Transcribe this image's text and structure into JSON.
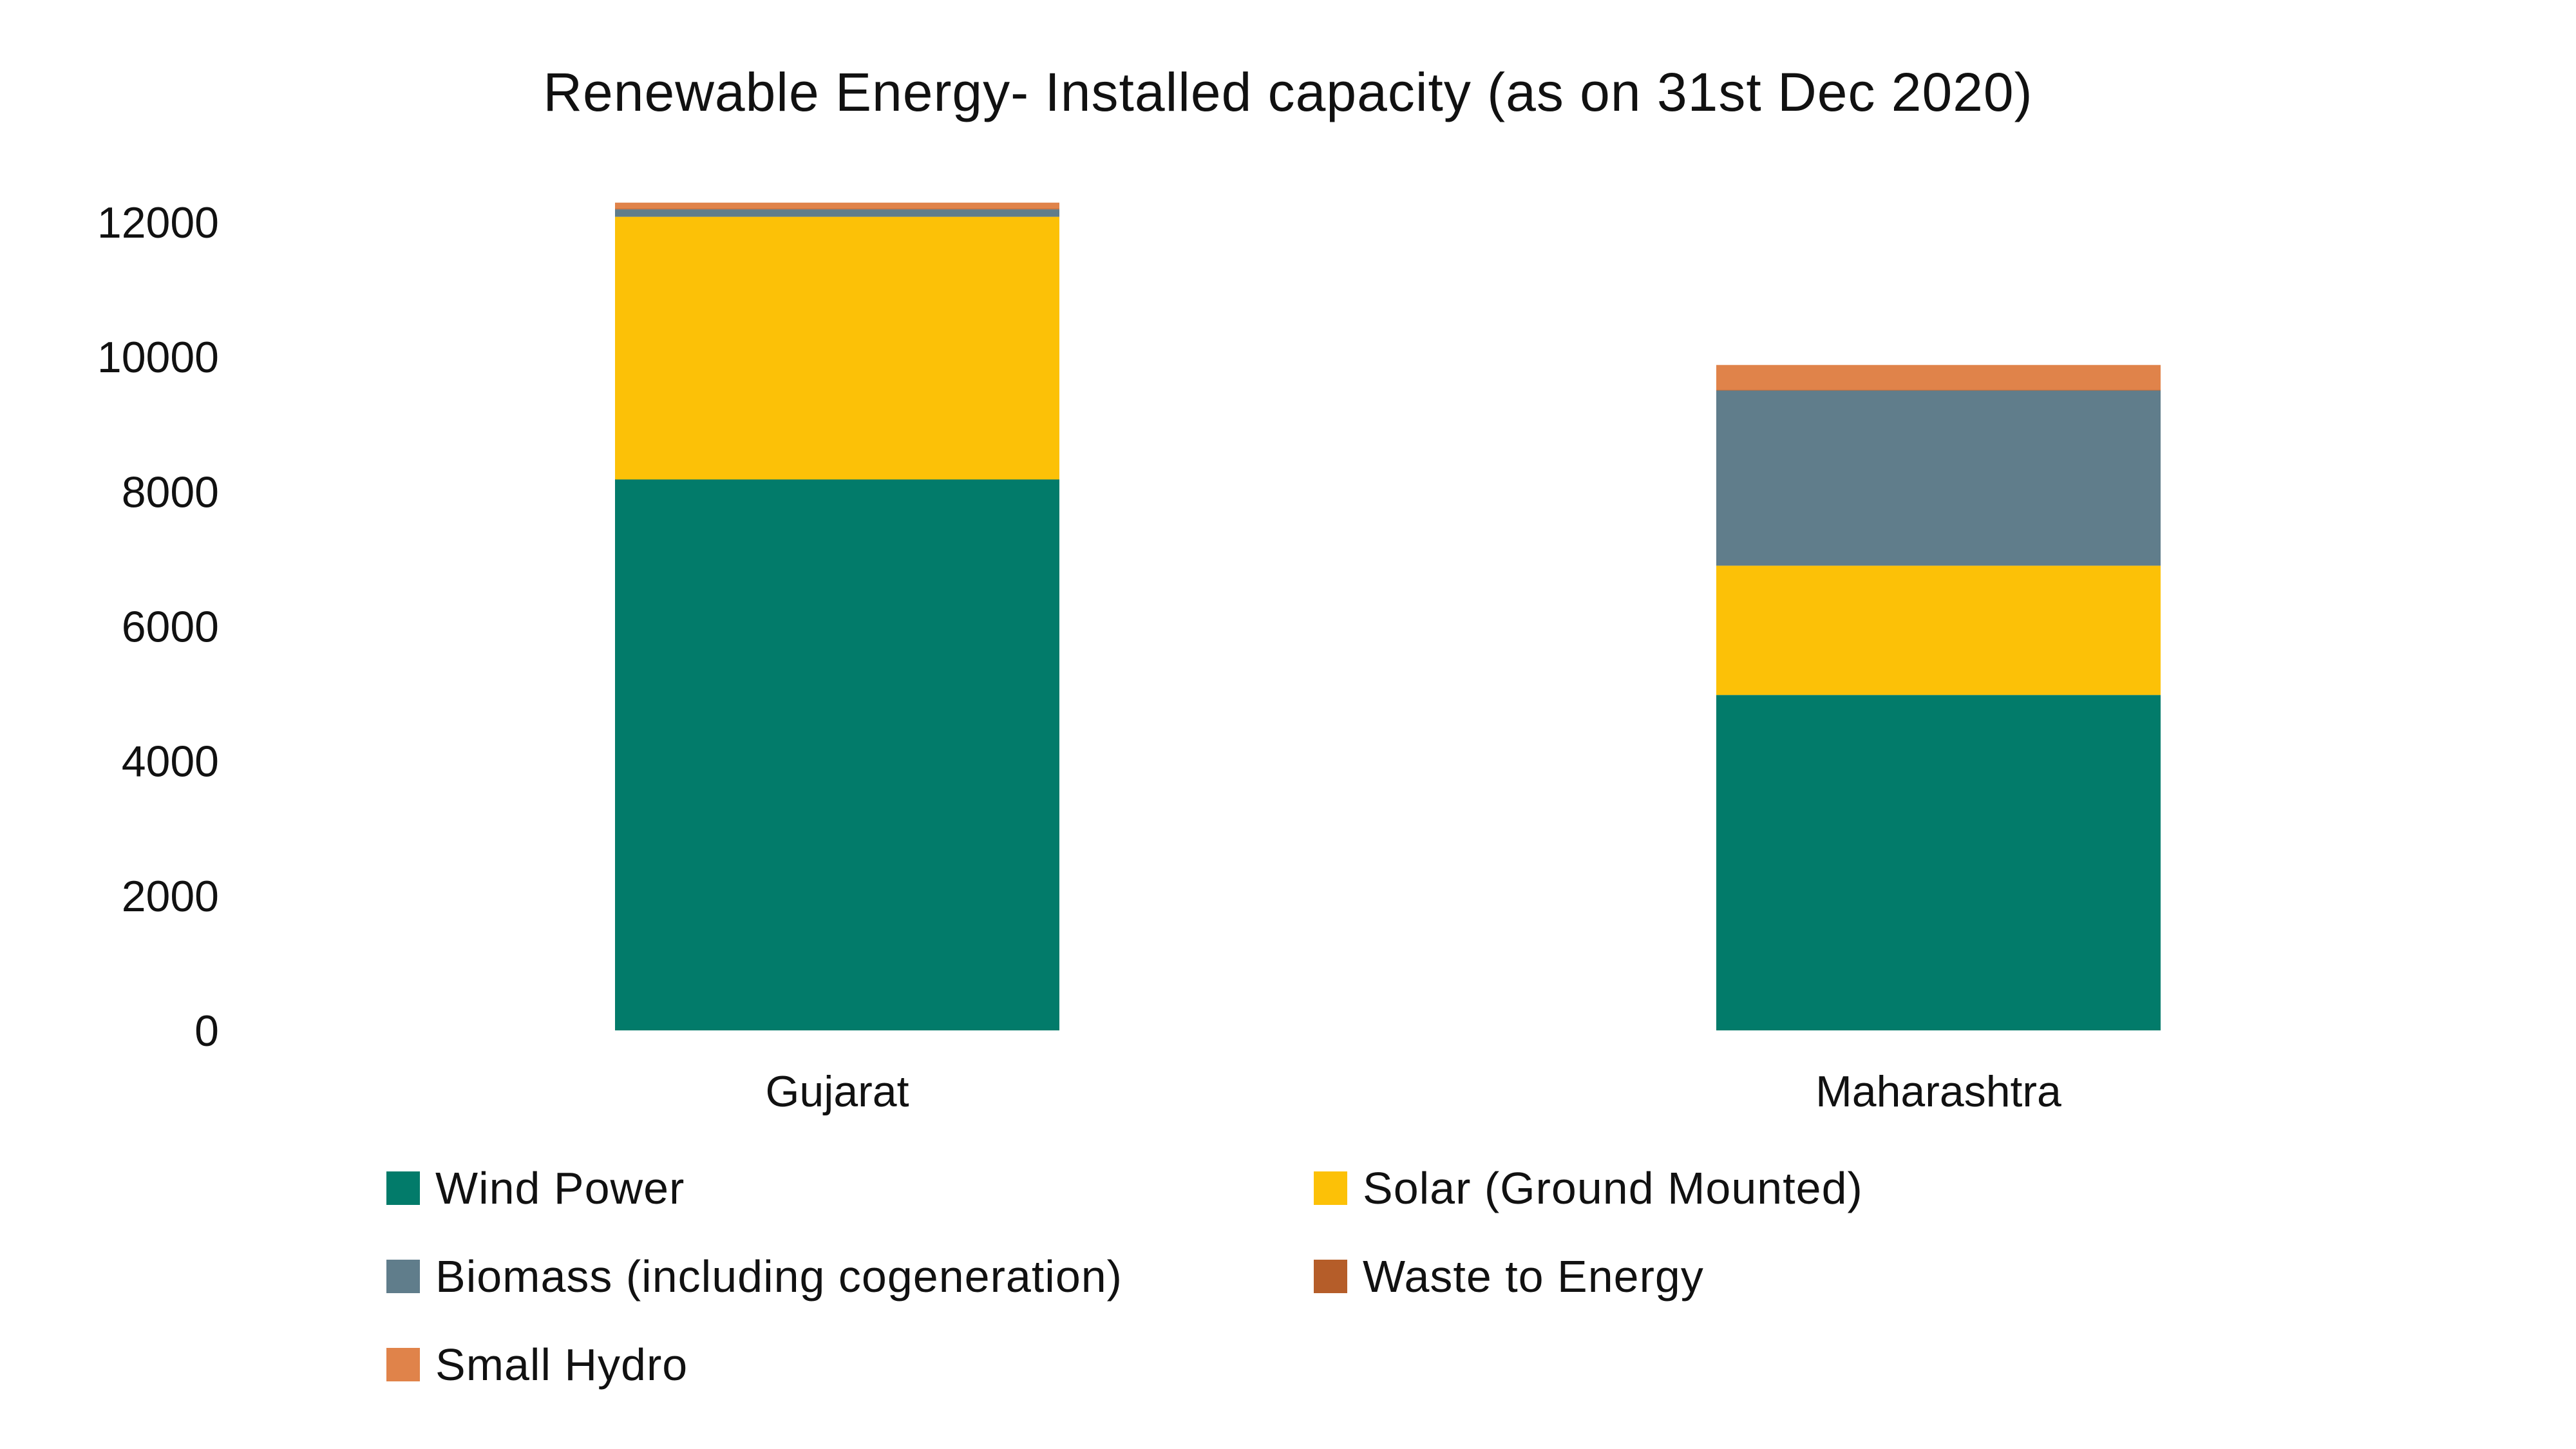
{
  "chart_data": {
    "type": "bar",
    "stacked": true,
    "title": "Renewable Energy- Installed capacity (as on 31st Dec 2020)",
    "categories": [
      "Gujarat",
      "Maharashtra"
    ],
    "ylim": [
      0,
      12000
    ],
    "yticks": [
      "0",
      "2000",
      "4000",
      "6000",
      "8000",
      "10000",
      "12000"
    ],
    "grid": false,
    "legend_position": "bottom",
    "series": [
      {
        "name": "Wind Power",
        "color": "#027b6a",
        "values": [
          8180,
          4980
        ]
      },
      {
        "name": "Solar (Ground Mounted)",
        "color": "#fcc107",
        "values": [
          3900,
          1920
        ]
      },
      {
        "name": "Biomass (including cogeneration)",
        "color": "#607d8b",
        "values": [
          110,
          2600
        ]
      },
      {
        "name": "Waste to Energy",
        "color": "#b55d29",
        "values": [
          10,
          10
        ]
      },
      {
        "name": "Small Hydro",
        "color": "#e0834a",
        "values": [
          90,
          370
        ]
      }
    ]
  }
}
